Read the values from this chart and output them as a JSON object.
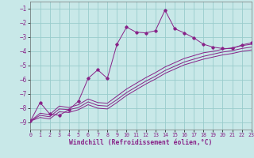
{
  "xlabel": "Windchill (Refroidissement éolien,°C)",
  "bg_color": "#c8e8e8",
  "grid_color": "#99cccc",
  "line_color": "#882288",
  "xlim": [
    0,
    23
  ],
  "ylim": [
    -9.5,
    -0.5
  ],
  "xticks": [
    0,
    1,
    2,
    3,
    4,
    5,
    6,
    7,
    8,
    9,
    10,
    11,
    12,
    13,
    14,
    15,
    16,
    17,
    18,
    19,
    20,
    21,
    22,
    23
  ],
  "yticks": [
    -9,
    -8,
    -7,
    -6,
    -5,
    -4,
    -3,
    -2,
    -1
  ],
  "s1_x": [
    0,
    1,
    2,
    3,
    4,
    5,
    6,
    7,
    8,
    9,
    10,
    11,
    12,
    13,
    14,
    15,
    16,
    17,
    18,
    19,
    20,
    21,
    22,
    23
  ],
  "s1_y": [
    -8.9,
    -7.6,
    -8.4,
    -8.5,
    -8.1,
    -7.5,
    -5.9,
    -5.3,
    -5.9,
    -3.5,
    -2.3,
    -2.65,
    -2.7,
    -2.55,
    -1.1,
    -2.4,
    -2.7,
    -3.05,
    -3.5,
    -3.7,
    -3.8,
    -3.8,
    -3.55,
    -3.4
  ],
  "s2_x": [
    0,
    1,
    2,
    3,
    4,
    5,
    6,
    7,
    8,
    9,
    10,
    11,
    12,
    13,
    14,
    15,
    16,
    17,
    18,
    19,
    20,
    21,
    22,
    23
  ],
  "s2_y": [
    -8.9,
    -8.35,
    -8.45,
    -7.85,
    -7.95,
    -7.75,
    -7.35,
    -7.6,
    -7.65,
    -7.15,
    -6.65,
    -6.25,
    -5.85,
    -5.5,
    -5.1,
    -4.8,
    -4.5,
    -4.3,
    -4.1,
    -4.0,
    -3.85,
    -3.75,
    -3.6,
    -3.5
  ],
  "s3_x": [
    0,
    1,
    2,
    3,
    4,
    5,
    6,
    7,
    8,
    9,
    10,
    11,
    12,
    13,
    14,
    15,
    16,
    17,
    18,
    19,
    20,
    21,
    22,
    23
  ],
  "s3_y": [
    -8.9,
    -8.5,
    -8.6,
    -8.05,
    -8.1,
    -7.95,
    -7.55,
    -7.8,
    -7.85,
    -7.4,
    -6.9,
    -6.5,
    -6.1,
    -5.75,
    -5.35,
    -5.05,
    -4.75,
    -4.55,
    -4.35,
    -4.2,
    -4.05,
    -3.95,
    -3.8,
    -3.7
  ],
  "s4_x": [
    0,
    1,
    2,
    3,
    4,
    5,
    6,
    7,
    8,
    9,
    10,
    11,
    12,
    13,
    14,
    15,
    16,
    17,
    18,
    19,
    20,
    21,
    22,
    23
  ],
  "s4_y": [
    -8.9,
    -8.65,
    -8.75,
    -8.25,
    -8.3,
    -8.1,
    -7.75,
    -8.0,
    -8.05,
    -7.6,
    -7.1,
    -6.7,
    -6.3,
    -5.95,
    -5.55,
    -5.25,
    -4.95,
    -4.75,
    -4.55,
    -4.4,
    -4.25,
    -4.15,
    -4.0,
    -3.9
  ]
}
